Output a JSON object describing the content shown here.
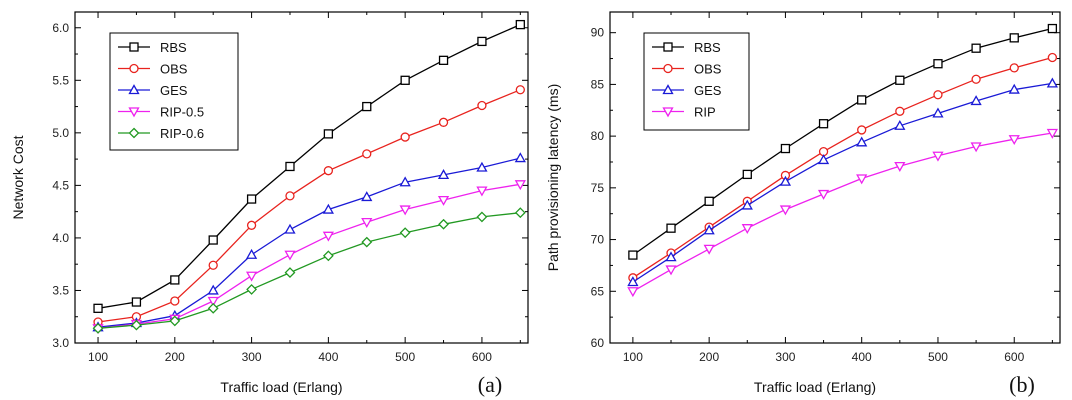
{
  "chart_data": [
    {
      "type": "line",
      "panel_label": "(a)",
      "xlabel": "Traffic load (Erlang)",
      "ylabel": "Network Cost",
      "xlim": [
        70,
        660
      ],
      "ylim": [
        3.0,
        6.15
      ],
      "xticks": [
        100,
        200,
        300,
        400,
        500,
        600
      ],
      "yticks": [
        3.0,
        3.5,
        4.0,
        4.5,
        5.0,
        5.5,
        6.0
      ],
      "ytick_labels": [
        "3.0",
        "3.5",
        "4.0",
        "4.5",
        "5.0",
        "5.5",
        "6.0"
      ],
      "legend_position": "top-left",
      "x": [
        100,
        150,
        200,
        250,
        300,
        350,
        400,
        450,
        500,
        550,
        600,
        650
      ],
      "series": [
        {
          "name": "RBS",
          "color": "#000000",
          "marker": "square",
          "values": [
            3.33,
            3.39,
            3.6,
            3.98,
            4.37,
            4.68,
            4.99,
            5.25,
            5.5,
            5.69,
            5.87,
            6.03
          ]
        },
        {
          "name": "OBS",
          "color": "#e8231e",
          "marker": "circle",
          "values": [
            3.2,
            3.25,
            3.4,
            3.74,
            4.12,
            4.4,
            4.64,
            4.8,
            4.96,
            5.1,
            5.26,
            5.41
          ]
        },
        {
          "name": "GES",
          "color": "#1a1ad6",
          "marker": "triangle-up",
          "values": [
            3.15,
            3.19,
            3.26,
            3.5,
            3.84,
            4.08,
            4.27,
            4.39,
            4.53,
            4.6,
            4.67,
            4.76
          ]
        },
        {
          "name": "RIP-0.5",
          "color": "#ee22ee",
          "marker": "triangle-down",
          "values": [
            3.14,
            3.18,
            3.23,
            3.4,
            3.64,
            3.84,
            4.02,
            4.15,
            4.27,
            4.36,
            4.45,
            4.51
          ]
        },
        {
          "name": "RIP-0.6",
          "color": "#229922",
          "marker": "diamond",
          "values": [
            3.14,
            3.17,
            3.21,
            3.33,
            3.51,
            3.67,
            3.83,
            3.96,
            4.05,
            4.13,
            4.2,
            4.24
          ]
        }
      ]
    },
    {
      "type": "line",
      "panel_label": "(b)",
      "xlabel": "Traffic load (Erlang)",
      "ylabel": "Path provisioning latency (ms)",
      "xlim": [
        70,
        660
      ],
      "ylim": [
        60,
        92
      ],
      "xticks": [
        100,
        200,
        300,
        400,
        500,
        600
      ],
      "yticks": [
        60,
        65,
        70,
        75,
        80,
        85,
        90
      ],
      "ytick_labels": [
        "60",
        "65",
        "70",
        "75",
        "80",
        "85",
        "90"
      ],
      "legend_position": "top-left",
      "x": [
        100,
        150,
        200,
        250,
        300,
        350,
        400,
        450,
        500,
        550,
        600,
        650
      ],
      "series": [
        {
          "name": "RBS",
          "color": "#000000",
          "marker": "square",
          "values": [
            68.5,
            71.1,
            73.7,
            76.3,
            78.8,
            81.2,
            83.5,
            85.4,
            87.0,
            88.5,
            89.5,
            90.4
          ]
        },
        {
          "name": "OBS",
          "color": "#e8231e",
          "marker": "circle",
          "values": [
            66.3,
            68.7,
            71.2,
            73.7,
            76.2,
            78.5,
            80.6,
            82.4,
            84.0,
            85.5,
            86.6,
            87.6
          ]
        },
        {
          "name": "GES",
          "color": "#1a1ad6",
          "marker": "triangle-up",
          "values": [
            65.9,
            68.3,
            70.9,
            73.3,
            75.6,
            77.7,
            79.4,
            81.0,
            82.2,
            83.4,
            84.5,
            85.1
          ]
        },
        {
          "name": "RIP",
          "color": "#ee22ee",
          "marker": "triangle-down",
          "values": [
            65.0,
            67.1,
            69.1,
            71.1,
            72.9,
            74.4,
            75.9,
            77.1,
            78.1,
            79.0,
            79.7,
            80.3
          ]
        }
      ]
    }
  ]
}
